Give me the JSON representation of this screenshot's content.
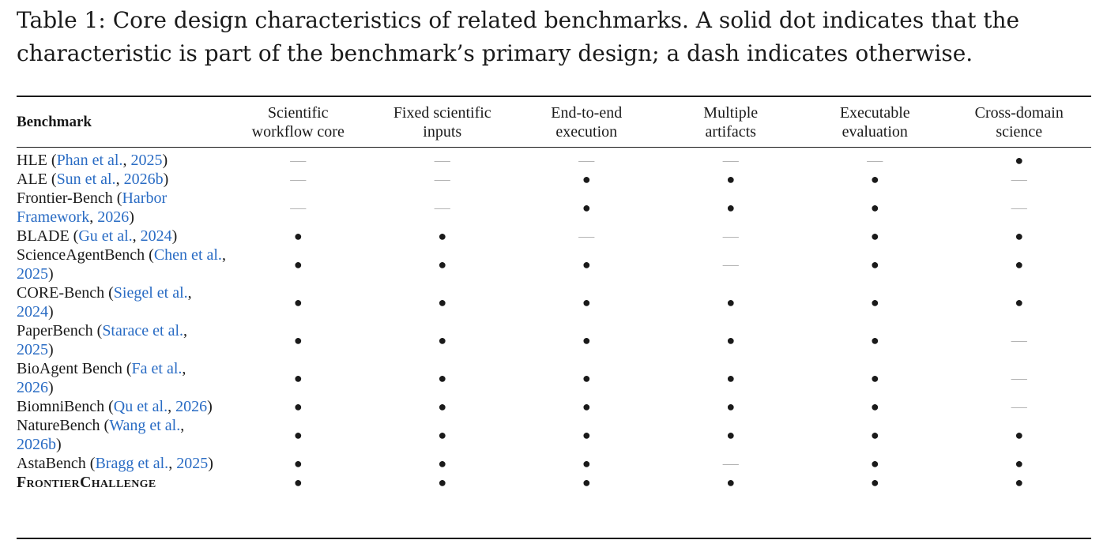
{
  "caption": "Table 1: Core design characteristics of related benchmarks. A solid dot indicates that the characteristic is part of the benchmark’s primary design; a dash indicates otherwise.",
  "headers": {
    "benchmark": "Benchmark",
    "columns": [
      [
        "Scientific",
        "workflow core"
      ],
      [
        "Fixed scientific",
        "inputs"
      ],
      [
        "End-to-end",
        "execution"
      ],
      [
        "Multiple",
        "artifacts"
      ],
      [
        "Executable",
        "evaluation"
      ],
      [
        "Cross-domain",
        "science"
      ]
    ]
  },
  "rows": [
    {
      "name": "HLE",
      "cite": "Phan et al.",
      "year": "2025",
      "marks": [
        false,
        false,
        false,
        false,
        false,
        true
      ]
    },
    {
      "name": "ALE",
      "cite": "Sun et al.",
      "year": "2026b",
      "marks": [
        false,
        false,
        true,
        true,
        true,
        false
      ]
    },
    {
      "name": "Frontier-Bench",
      "cite": "Harbor Framework",
      "year": "2026",
      "marks": [
        false,
        false,
        true,
        true,
        true,
        false
      ]
    },
    {
      "name": "BLADE",
      "cite": "Gu et al.",
      "year": "2024",
      "marks": [
        true,
        true,
        false,
        false,
        true,
        true
      ]
    },
    {
      "name": "ScienceAgentBench",
      "cite": "Chen et al.",
      "year": "2025",
      "marks": [
        true,
        true,
        true,
        false,
        true,
        true
      ]
    },
    {
      "name": "CORE-Bench",
      "cite": "Siegel et al.",
      "year": "2024",
      "marks": [
        true,
        true,
        true,
        true,
        true,
        true
      ]
    },
    {
      "name": "PaperBench",
      "cite": "Starace et al.",
      "year": "2025",
      "marks": [
        true,
        true,
        true,
        true,
        true,
        false
      ]
    },
    {
      "name": "BioAgent Bench",
      "cite": "Fa et al.",
      "year": "2026",
      "marks": [
        true,
        true,
        true,
        true,
        true,
        false
      ]
    },
    {
      "name": "BiomniBench",
      "cite": "Qu et al.",
      "year": "2026",
      "marks": [
        true,
        true,
        true,
        true,
        true,
        false
      ]
    },
    {
      "name": "NatureBench",
      "cite": "Wang et al.",
      "year": "2026b",
      "marks": [
        true,
        true,
        true,
        true,
        true,
        true
      ]
    },
    {
      "name": "AstaBench",
      "cite": "Bragg et al.",
      "year": "2025",
      "marks": [
        true,
        true,
        true,
        false,
        true,
        true
      ]
    },
    {
      "name": "FrontierChallenge",
      "cite": "",
      "year": "",
      "ours": true,
      "marks": [
        true,
        true,
        true,
        true,
        true,
        true
      ]
    }
  ],
  "symbols": {
    "yes": "●",
    "no": "—"
  },
  "colors": {
    "text": "#1a1a1a",
    "citation": "#2a6cc4",
    "dash": "#b3b3b3"
  }
}
